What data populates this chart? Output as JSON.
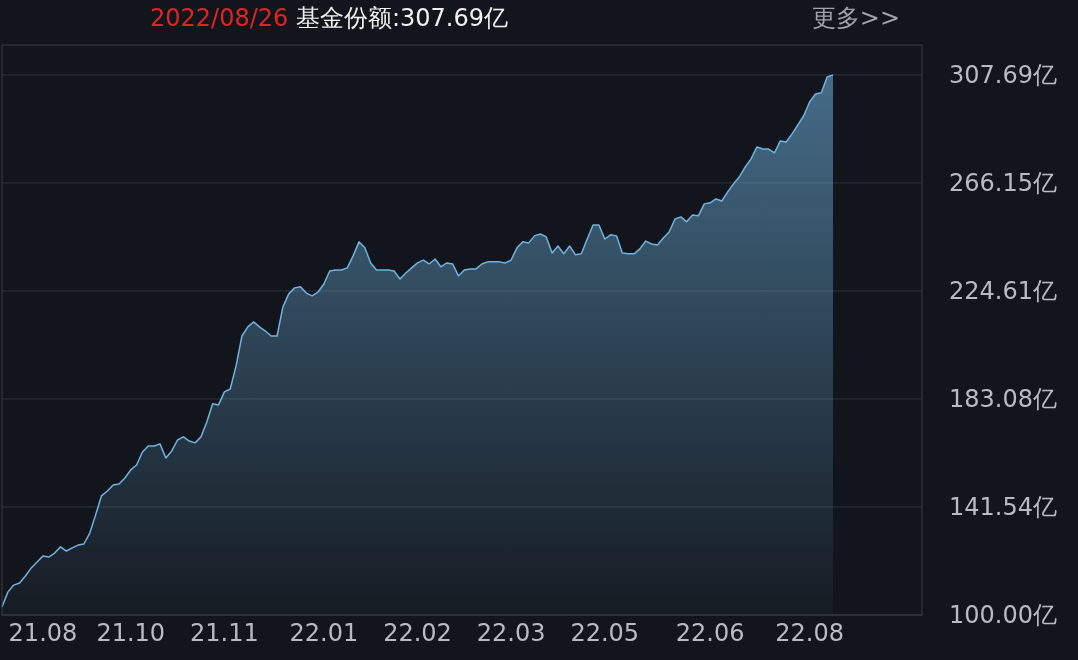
{
  "chart_data": {
    "type": "area",
    "title": "2022/08/26 基金份额:307.69亿",
    "annotations": [
      "更多>>"
    ],
    "categories": [
      null,
      null,
      null,
      null,
      null,
      null,
      null,
      "21.08",
      null,
      null,
      null,
      null,
      null,
      null,
      null,
      null,
      null,
      null,
      null,
      null,
      null,
      null,
      "21.10",
      null,
      null,
      null,
      null,
      null,
      null,
      null,
      null,
      null,
      null,
      null,
      null,
      null,
      null,
      null,
      "21.11",
      null,
      null,
      null,
      null,
      null,
      null,
      null,
      null,
      null,
      null,
      null,
      null,
      null,
      null,
      null,
      null,
      "22.01",
      null,
      null,
      null,
      null,
      null,
      null,
      null,
      null,
      null,
      null,
      null,
      null,
      null,
      null,
      null,
      "22.02",
      null,
      null,
      null,
      null,
      null,
      null,
      null,
      null,
      null,
      null,
      null,
      null,
      null,
      null,
      null,
      "22.03",
      null,
      null,
      null,
      null,
      null,
      null,
      null,
      null,
      null,
      null,
      null,
      null,
      null,
      null,
      null,
      "22.05",
      null,
      null,
      null,
      null,
      null,
      null,
      null,
      null,
      null,
      null,
      null,
      null,
      null,
      null,
      null,
      null,
      null,
      "22.06",
      null,
      null,
      null,
      null,
      null,
      null,
      null,
      null,
      null,
      null,
      null,
      null,
      null,
      null,
      null,
      null,
      "22.08",
      null,
      null,
      null,
      null
    ],
    "series": [
      {
        "color": "#6fb3e0",
        "values": [
          103.1,
          108.8,
          111.5,
          112.3,
          115.0,
          118.1,
          120.4,
          122.7,
          122.3,
          123.8,
          126.2,
          124.6,
          125.8,
          126.9,
          127.3,
          131.5,
          138.5,
          145.8,
          147.7,
          150.0,
          150.4,
          152.7,
          155.8,
          157.7,
          162.7,
          165.0,
          165.0,
          165.8,
          160.4,
          163.1,
          167.3,
          168.5,
          166.9,
          166.2,
          168.5,
          174.2,
          181.2,
          180.8,
          185.8,
          186.9,
          195.8,
          207.3,
          210.8,
          212.7,
          210.8,
          209.2,
          207.3,
          207.3,
          218.5,
          223.5,
          225.8,
          226.2,
          223.8,
          222.7,
          224.2,
          227.3,
          232.3,
          232.7,
          232.7,
          233.5,
          238.1,
          243.5,
          241.2,
          235.4,
          232.7,
          232.7,
          232.7,
          232.3,
          229.2,
          231.5,
          233.5,
          235.4,
          236.5,
          235.0,
          236.9,
          233.9,
          235.4,
          235.0,
          230.4,
          232.7,
          233.1,
          233.1,
          235.0,
          235.8,
          235.8,
          235.8,
          235.4,
          236.5,
          241.2,
          243.5,
          243.1,
          245.8,
          246.5,
          245.4,
          239.2,
          241.9,
          238.9,
          241.9,
          238.5,
          238.9,
          244.6,
          250.0,
          250.0,
          244.6,
          246.2,
          245.8,
          239.2,
          238.9,
          238.9,
          240.8,
          243.8,
          242.7,
          242.3,
          245.0,
          247.3,
          252.3,
          253.1,
          251.2,
          253.8,
          253.5,
          258.1,
          258.5,
          260.0,
          259.2,
          262.7,
          265.8,
          268.5,
          272.3,
          275.4,
          280.0,
          279.2,
          279.2,
          277.7,
          282.3,
          281.9,
          285.0,
          288.5,
          292.0,
          297.3,
          300.4,
          300.8,
          306.9,
          307.7
        ]
      }
    ],
    "ylim": [
      100,
      319.2
    ],
    "yticks": [
      {
        "value": 100,
        "label": "100.00亿"
      },
      {
        "value": 141.54,
        "label": "141.54亿"
      },
      {
        "value": 183.08,
        "label": "183.08亿"
      },
      {
        "value": 224.61,
        "label": "224.61亿"
      },
      {
        "value": 266.15,
        "label": "266.15亿"
      },
      {
        "value": 307.69,
        "label": "307.69亿"
      }
    ],
    "grid": "y"
  }
}
